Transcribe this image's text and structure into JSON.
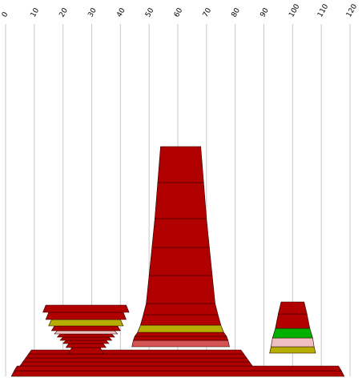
{
  "chart_data": {
    "type": "stacked-area",
    "title": "",
    "xlabel": "",
    "ylabel": "",
    "x_ticks": [
      0,
      10,
      20,
      30,
      40,
      50,
      60,
      70,
      80,
      90,
      100,
      110,
      120
    ],
    "xlim": [
      0,
      120
    ],
    "grid": true,
    "legend": "none",
    "series_colors": {
      "red": "#b00000",
      "olive": "#b5ae00",
      "salmon": "#d45454",
      "pink": "#f0c0c0",
      "green": "#00b000"
    },
    "shapes": [
      {
        "name": "left-peak",
        "bands": [
          {
            "from": 0,
            "to": 1,
            "x_bottom": [
              22,
              34
            ],
            "x_top": [
              23,
              33
            ],
            "color": "red"
          },
          {
            "from": 1,
            "to": 2,
            "x_bottom": [
              21,
              35
            ],
            "x_top": [
              22,
              34
            ],
            "color": "red"
          },
          {
            "from": 2,
            "to": 3,
            "x_bottom": [
              20,
              36
            ],
            "x_top": [
              21,
              35
            ],
            "color": "red"
          },
          {
            "from": 3,
            "to": 4,
            "x_bottom": [
              19,
              37
            ],
            "x_top": [
              20,
              36
            ],
            "color": "red"
          },
          {
            "from": 4,
            "to": 5,
            "x_bottom": [
              18,
              38
            ],
            "x_top": [
              19,
              37
            ],
            "color": "red"
          },
          {
            "from": 5,
            "to": 6,
            "x_bottom": [
              17,
              39
            ],
            "x_top": [
              18,
              38
            ],
            "color": "pink"
          },
          {
            "from": 6,
            "to": 7,
            "x_bottom": [
              16,
              40
            ],
            "x_top": [
              17,
              39
            ],
            "color": "red"
          },
          {
            "from": 7,
            "to": 8,
            "x_bottom": [
              15,
              41
            ],
            "x_top": [
              16,
              40
            ],
            "color": "olive"
          },
          {
            "from": 8,
            "to": 9,
            "x_bottom": [
              14,
              42
            ],
            "x_top": [
              15,
              41
            ],
            "color": "red"
          },
          {
            "from": 9,
            "to": 10,
            "x_bottom": [
              13,
              43
            ],
            "x_top": [
              14,
              42
            ],
            "color": "red"
          }
        ]
      },
      {
        "name": "center-peak",
        "bands": [
          {
            "from": 0,
            "to": 1,
            "x_bottom": [
              44,
              78
            ],
            "x_top": [
              44.5,
              77.5
            ],
            "color": "salmon"
          },
          {
            "from": 1,
            "to": 2,
            "x_bottom": [
              44.5,
              77.5
            ],
            "x_top": [
              45,
              77
            ],
            "color": "red"
          },
          {
            "from": 2,
            "to": 3,
            "x_bottom": [
              45,
              77
            ],
            "x_top": [
              46,
              76
            ],
            "color": "red"
          },
          {
            "from": 3,
            "to": 4,
            "x_bottom": [
              46,
              76
            ],
            "x_top": [
              47,
              75
            ],
            "color": "olive"
          },
          {
            "from": 4,
            "to": 5,
            "x_bottom": [
              47,
              75
            ],
            "x_top": [
              48,
              74
            ],
            "color": "red"
          },
          {
            "from": 5,
            "to": 6,
            "x_bottom": [
              48,
              74
            ],
            "x_top": [
              49,
              73
            ],
            "color": "red"
          },
          {
            "from": 6,
            "to": 7,
            "x_bottom": [
              49,
              73
            ],
            "x_top": [
              50,
              72
            ],
            "color": "red"
          },
          {
            "from": 7,
            "to": 8,
            "x_bottom": [
              50,
              72
            ],
            "x_top": [
              51,
              71
            ],
            "color": "red"
          },
          {
            "from": 8,
            "to": 9,
            "x_bottom": [
              51,
              71
            ],
            "x_top": [
              52,
              70
            ],
            "color": "red"
          },
          {
            "from": 9,
            "to": 10,
            "x_bottom": [
              52,
              70
            ],
            "x_top": [
              53,
              69
            ],
            "color": "red"
          },
          {
            "from": 10,
            "to": 11,
            "x_bottom": [
              53,
              69
            ],
            "x_top": [
              54,
              68
            ],
            "color": "red"
          }
        ]
      },
      {
        "name": "right-peak",
        "bands": [
          {
            "from": 0,
            "to": 1,
            "x_bottom": [
              92,
              108
            ],
            "x_top": [
              92.5,
              107.5
            ],
            "color": "olive"
          },
          {
            "from": 1,
            "to": 2,
            "x_bottom": [
              92.5,
              107.5
            ],
            "x_top": [
              93,
              107
            ],
            "color": "pink"
          },
          {
            "from": 2,
            "to": 3,
            "x_bottom": [
              93,
              107
            ],
            "x_top": [
              94,
              106
            ],
            "color": "green"
          },
          {
            "from": 3,
            "to": 4,
            "x_bottom": [
              94,
              106
            ],
            "x_top": [
              95,
              105
            ],
            "color": "red"
          },
          {
            "from": 4,
            "to": 5,
            "x_bottom": [
              95,
              105
            ],
            "x_top": [
              96,
              104
            ],
            "color": "red"
          }
        ]
      }
    ]
  }
}
